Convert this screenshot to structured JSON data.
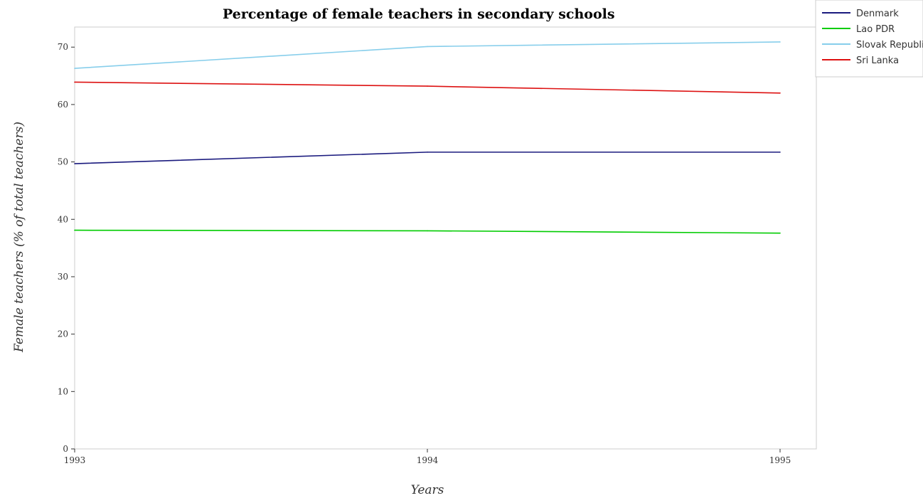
{
  "chart_data": {
    "type": "line",
    "title": "Percentage of female teachers in secondary schools",
    "xlabel": "Years",
    "ylabel": "Female teachers (% of total teachers)",
    "categories": [
      "1993",
      "1994",
      "1995"
    ],
    "ylim": [
      0,
      73.5
    ],
    "yticks": [
      0,
      10,
      20,
      30,
      40,
      50,
      60,
      70
    ],
    "grid": false,
    "legend_position": "top-right",
    "series": [
      {
        "name": "Denmark",
        "color": "#1a1a7e",
        "values": [
          49.7,
          51.7,
          51.7
        ]
      },
      {
        "name": "Lao PDR",
        "color": "#00cc00",
        "values": [
          38.1,
          38.0,
          37.6
        ]
      },
      {
        "name": "Slovak Republic",
        "color": "#87ceeb",
        "values": [
          66.3,
          70.1,
          70.9
        ]
      },
      {
        "name": "Sri Lanka",
        "color": "#dd1111",
        "values": [
          63.9,
          63.2,
          62.0
        ]
      }
    ]
  }
}
